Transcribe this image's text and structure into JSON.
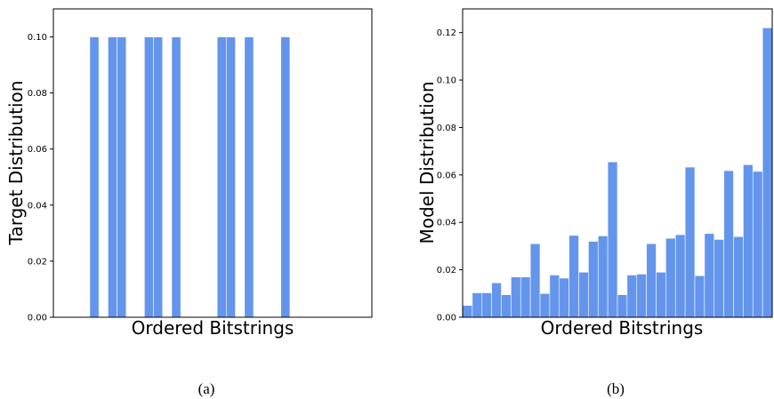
{
  "colors": {
    "bar": "#6495ed"
  },
  "chart_data": [
    {
      "type": "bar",
      "panel_label": "(a)",
      "xlabel": "Ordered Bitstrings",
      "ylabel": "Target Distribution",
      "ylim": [
        0,
        0.11
      ],
      "yticks": [
        "0.00",
        "0.02",
        "0.04",
        "0.06",
        "0.08",
        "0.10"
      ],
      "ytick_values": [
        0,
        0.02,
        0.04,
        0.06,
        0.08,
        0.1
      ],
      "xlim": [
        -0.5,
        34.5
      ],
      "bins": 32,
      "values": [
        0,
        0,
        0,
        0,
        0.1,
        0,
        0.1,
        0.1,
        0,
        0,
        0.1,
        0.1,
        0,
        0.1,
        0,
        0,
        0,
        0,
        0.1,
        0.1,
        0,
        0.1,
        0,
        0,
        0,
        0.1,
        0,
        0,
        0,
        0,
        0,
        0
      ],
      "grid": false
    },
    {
      "type": "bar",
      "panel_label": "(b)",
      "xlabel": "Ordered Bitstrings",
      "ylabel": "Model Distribution",
      "ylim": [
        0,
        0.13
      ],
      "yticks": [
        "0.00",
        "0.02",
        "0.04",
        "0.06",
        "0.08",
        "0.10",
        "0.12"
      ],
      "ytick_values": [
        0,
        0.02,
        0.04,
        0.06,
        0.08,
        0.1,
        0.12
      ],
      "xlim": [
        -0.5,
        31.5
      ],
      "bins": 32,
      "values": [
        0.005,
        0.0103,
        0.0103,
        0.0145,
        0.0095,
        0.017,
        0.017,
        0.031,
        0.01,
        0.0178,
        0.0165,
        0.0345,
        0.019,
        0.032,
        0.0343,
        0.0655,
        0.0095,
        0.0178,
        0.0182,
        0.031,
        0.019,
        0.0333,
        0.0348,
        0.0633,
        0.0175,
        0.0353,
        0.0328,
        0.0618,
        0.034,
        0.0643,
        0.0615,
        0.122
      ],
      "grid": false
    }
  ]
}
